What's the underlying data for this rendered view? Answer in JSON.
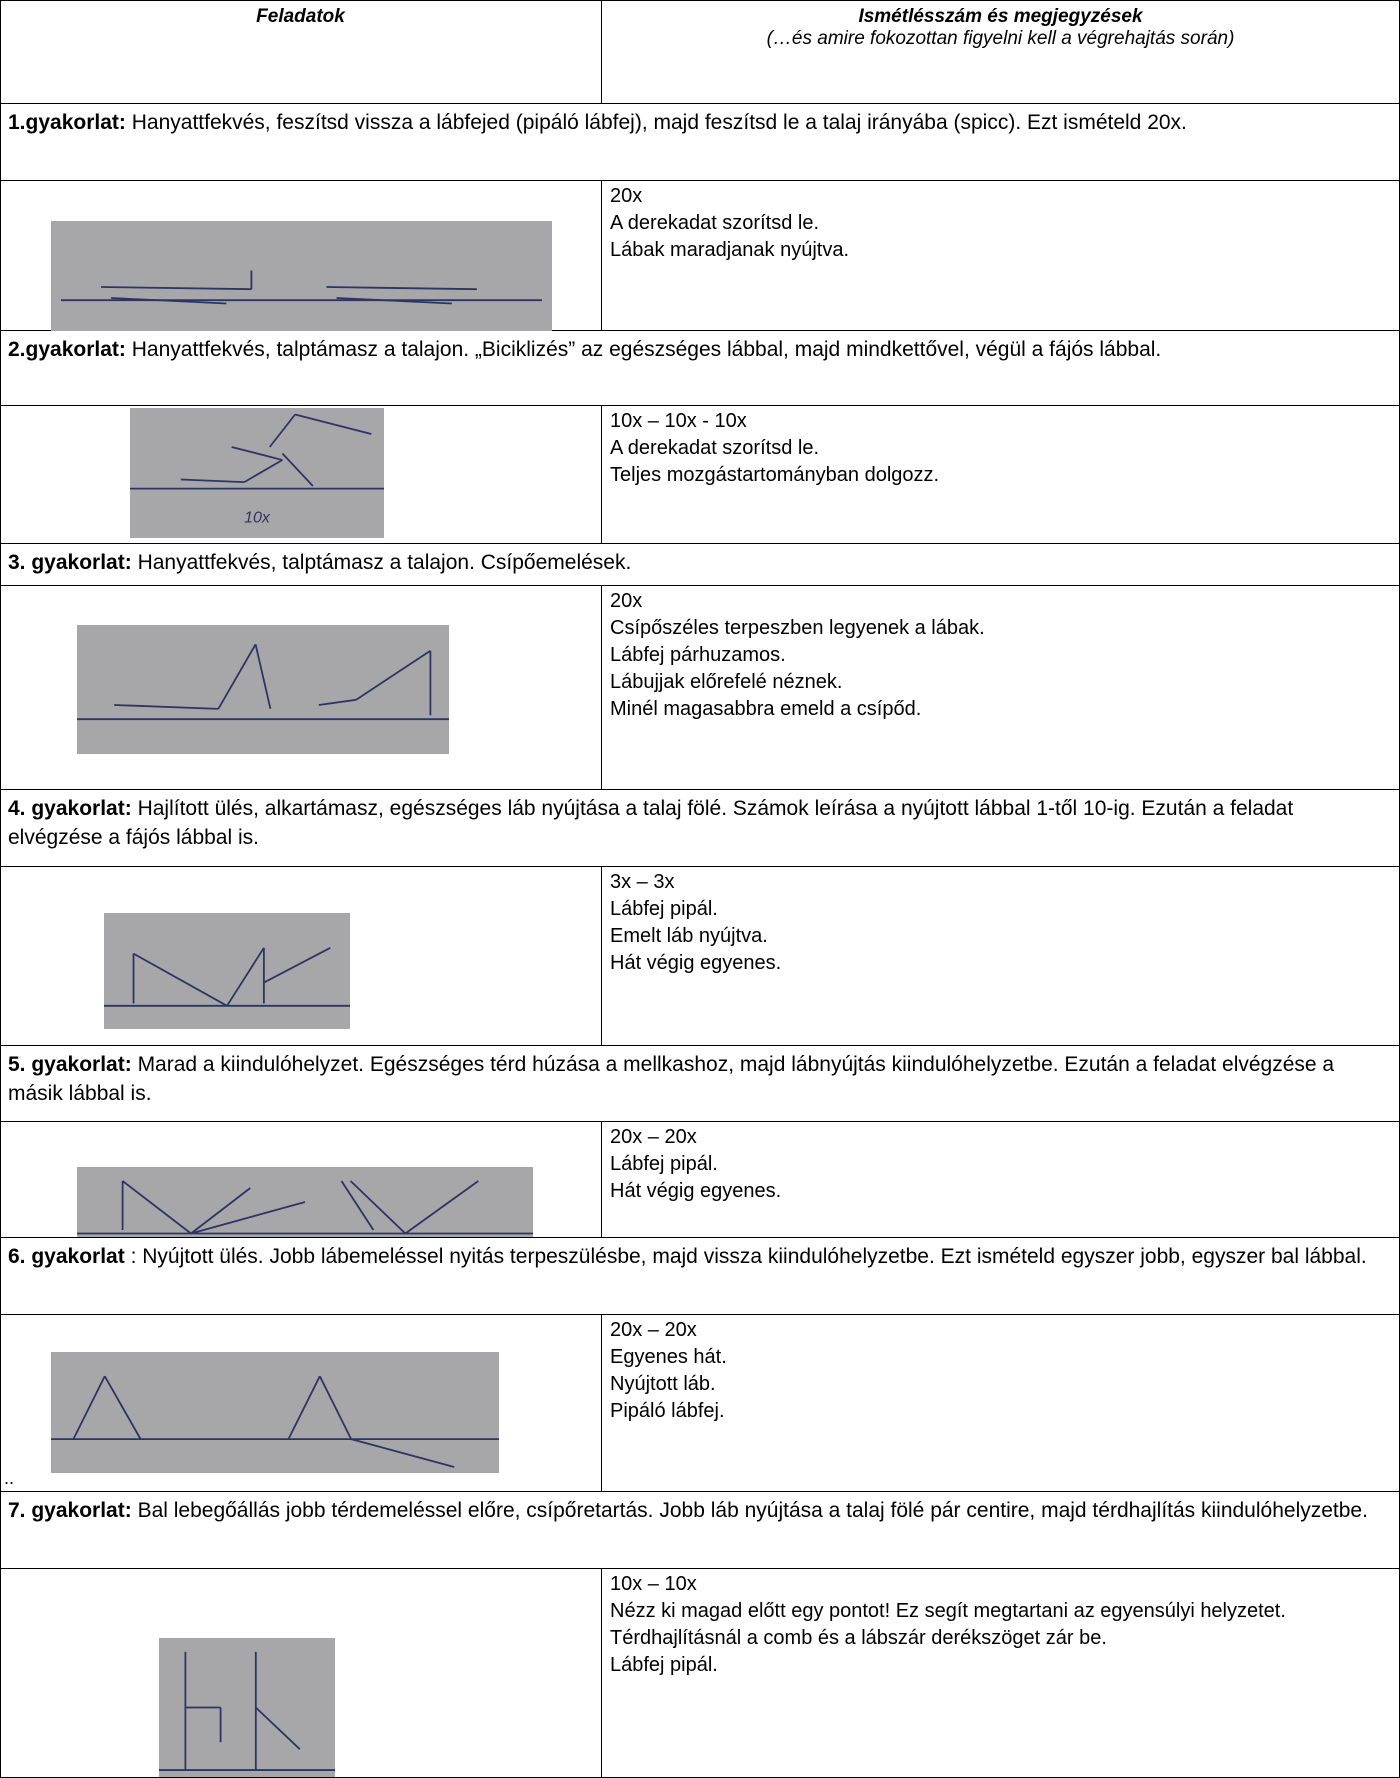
{
  "header": {
    "col1": "Feladatok",
    "col2_title": "Ismétlésszám és megjegyzések",
    "col2_subtitle": "(…és amire fokozottan figyelni kell a végrehajtás során)"
  },
  "exercises": [
    {
      "label": "1.gyakorlat:",
      "description": "Hanyattfekvés, feszítsd vissza a lábfejed (pipáló lábfej), majd feszítsd le a talaj irányába (spicc). Ezt ismételd 20x.",
      "notes": [
        "20x",
        "A derekadat szorítsd le.",
        "Lábak maradjanak nyújtva."
      ]
    },
    {
      "label": "2.gyakorlat:",
      "description": "Hanyattfekvés, talptámasz a talajon. „Biciklizés” az egészséges lábbal, majd mindkettővel, végül a fájós lábbal.",
      "notes": [
        "10x – 10x - 10x",
        "A derekadat szorítsd le.",
        "Teljes mozgástartományban dolgozz."
      ],
      "sketch_label": "10x"
    },
    {
      "label": "3. gyakorlat:",
      "description": "Hanyattfekvés, talptámasz a talajon. Csípőemelések.",
      "notes": [
        "20x",
        "Csípőszéles terpeszben legyenek a lábak.",
        "Lábfej párhuzamos.",
        "Lábujjak előrefelé néznek.",
        "Minél magasabbra emeld a csípőd."
      ]
    },
    {
      "label": "4. gyakorlat:",
      "description": "Hajlított ülés, alkartámasz, egészséges láb nyújtása a talaj fölé. Számok leírása a nyújtott lábbal 1-től 10-ig. Ezután a feladat elvégzése a fájós lábbal is.",
      "notes": [
        "3x – 3x",
        "Lábfej pipál.",
        "Emelt láb nyújtva.",
        "Hát végig egyenes."
      ]
    },
    {
      "label": "5. gyakorlat:",
      "description": "Marad a kiindulóhelyzet. Egészséges térd húzása a mellkashoz, majd lábnyújtás kiindulóhelyzetbe. Ezután a feladat elvégzése a másik lábbal is.",
      "notes": [
        "20x – 20x",
        "Lábfej pipál.",
        "Hát végig egyenes."
      ]
    },
    {
      "label": "6. gyakorlat",
      "description": ": Nyújtott ülés. Jobb lábemeléssel nyitás terpeszülésbe, majd vissza kiindulóhelyzetbe. Ezt ismételd egyszer jobb, egyszer bal lábbal.",
      "notes": [
        "20x – 20x",
        "Egyenes hát.",
        "Nyújtott láb.",
        "Pipáló lábfej."
      ],
      "caption": ".."
    },
    {
      "label": "7. gyakorlat:",
      "description": "Bal lebegőállás jobb térdemeléssel előre, csípőretartás.  Jobb láb nyújtása a talaj fölé pár centire, majd térdhajlítás kiindulóhelyzetbe.",
      "notes": [
        "10x – 10x",
        "Nézz ki magad előtt egy pontot! Ez segít megtartani az egyensúlyi helyzetet.",
        "Térdhajlításnál a comb és a lábszár derékszöget zár be.",
        "Lábfej pipál."
      ]
    }
  ]
}
